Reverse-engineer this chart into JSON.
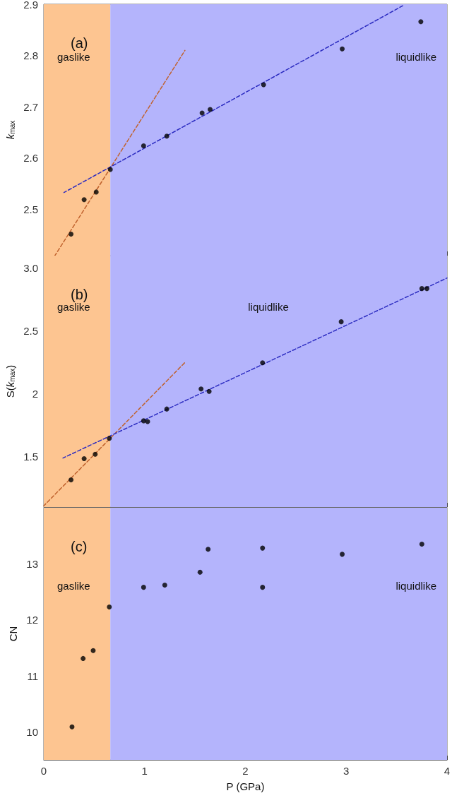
{
  "chart_data": [
    {
      "type": "scatter",
      "ylabel": "k$_{max}$",
      "annotations": [
        "(a)"
      ],
      "xlim": [
        0,
        4
      ],
      "xticks": [
        0,
        1,
        2,
        3,
        4
      ],
      "ylim": [
        2.41,
        2.9
      ],
      "yticks": [
        2.5,
        2.6,
        2.7,
        2.8,
        2.9
      ],
      "tick_labels": "y",
      "grid": false,
      "marker": "circle",
      "bands": [
        {
          "axis": "x",
          "from": 0,
          "to": 0.66,
          "label": "gaslike",
          "color": "#fdc591"
        },
        {
          "axis": "x",
          "from": 0.66,
          "to": 4,
          "label": "liquidlike",
          "color": "#b4b4fc"
        }
      ],
      "series": [
        {
          "type": "scatter",
          "color": "#000000",
          "x": [
            0.27,
            0.4,
            0.52,
            0.66,
            0.99,
            1.22,
            1.57,
            1.65,
            2.18,
            2.96,
            3.74
          ],
          "values": [
            2.452,
            2.519,
            2.534,
            2.578,
            2.624,
            2.643,
            2.688,
            2.695,
            2.743,
            2.813,
            2.866
          ]
        },
        {
          "type": "line",
          "color": "#c0622d",
          "line_style": "dashed",
          "marker": "none",
          "x": [
            0.11,
            1.4
          ],
          "values": [
            2.41,
            2.81
          ]
        },
        {
          "type": "line",
          "color": "#2a2ac0",
          "line_style": "dashed",
          "marker": "none",
          "x": [
            0.2,
            3.56
          ],
          "values": [
            2.533,
            2.897
          ]
        }
      ]
    },
    {
      "type": "scatter",
      "ylabel": "S(k$_{max}$)",
      "annotations": [
        "(b)"
      ],
      "xlim": [
        0,
        4
      ],
      "xticks": [
        0,
        1,
        2,
        3,
        4
      ],
      "ylim": [
        1.1,
        3.1
      ],
      "yticks": [
        1.5,
        2,
        2.5,
        {
          "value": 3,
          "label": "3.0"
        }
      ],
      "tick_labels": "y",
      "grid": false,
      "marker": "circle",
      "bands": [
        {
          "axis": "x",
          "from": 0,
          "to": 0.66,
          "label": "gaslike",
          "color": "#fdc591"
        },
        {
          "axis": "x",
          "from": 0.66,
          "to": 4,
          "label": "liquidlike",
          "color": "#b4b4fc"
        }
      ],
      "series": [
        {
          "type": "scatter",
          "color": "#000000",
          "x": [
            0.27,
            0.4,
            0.51,
            0.65,
            0.99,
            1.03,
            1.22,
            1.56,
            1.64,
            2.17,
            2.95,
            3.75,
            3.8
          ],
          "values": [
            1.316,
            1.485,
            1.52,
            1.646,
            1.786,
            1.78,
            1.88,
            2.04,
            2.02,
            2.247,
            2.574,
            2.838,
            2.838
          ]
        },
        {
          "type": "line",
          "color": "#c0622d",
          "line_style": "dashed",
          "marker": "none",
          "x": [
            0.0,
            1.4
          ],
          "values": [
            1.11,
            2.25
          ]
        },
        {
          "type": "line",
          "color": "#2a2ac0",
          "line_style": "dashed",
          "marker": "none",
          "x": [
            0.19,
            4.0
          ],
          "values": [
            1.49,
            2.922
          ]
        }
      ]
    },
    {
      "type": "scatter",
      "xlabel": "P (GPa)",
      "ylabel": "CN",
      "annotations": [
        "(c)"
      ],
      "xlim": [
        0,
        4
      ],
      "xticks": [
        0,
        1,
        2,
        3,
        4
      ],
      "ylim": [
        9.5,
        14
      ],
      "yticks": [
        10,
        11,
        12,
        13
      ],
      "grid": false,
      "marker": "circle",
      "bands": [
        {
          "axis": "x",
          "from": 0,
          "to": 0.66,
          "label": "gaslike",
          "color": "#fdc591"
        },
        {
          "axis": "x",
          "from": 0.66,
          "to": 4,
          "label": "liquidlike",
          "color": "#b4b4fc"
        }
      ],
      "series": [
        {
          "type": "scatter",
          "color": "#000000",
          "x": [
            0.28,
            0.39,
            0.49,
            0.65,
            0.99,
            1.2,
            1.55,
            1.63,
            2.17,
            2.17,
            2.96,
            3.75
          ],
          "values": [
            10.09,
            11.31,
            11.45,
            12.23,
            12.58,
            12.62,
            12.85,
            13.26,
            13.28,
            12.58,
            13.17,
            13.35
          ]
        }
      ]
    }
  ]
}
